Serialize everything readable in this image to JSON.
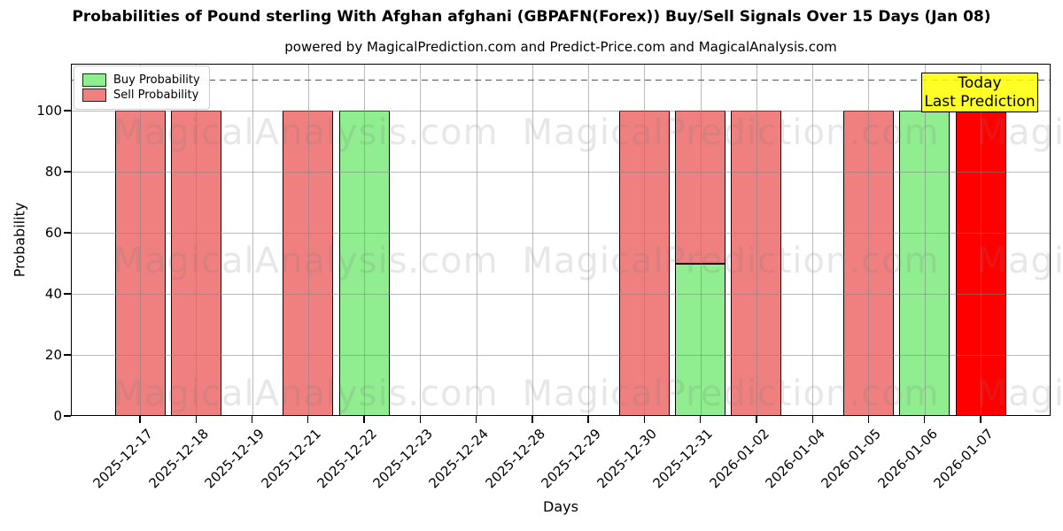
{
  "title": "Probabilities of Pound sterling With Afghan afghani (GBPAFN(Forex)) Buy/Sell Signals Over 15 Days (Jan 08)",
  "subtitle": "powered by MagicalPrediction.com and Predict-Price.com and MagicalAnalysis.com",
  "legend": {
    "buy_label": "Buy Probability",
    "sell_label": "Sell Probability"
  },
  "annotation": {
    "line1": "Today",
    "line2": "Last Prediction",
    "bg_color": "#FFFF00"
  },
  "colors": {
    "buy": "#90EE90",
    "sell": "#F08080",
    "today_bar": "#FF0000",
    "grid": "rgba(130,130,130,0.55)",
    "dashed_line": "#555555",
    "watermark": "rgba(120,120,120,0.18)"
  },
  "chart_data": {
    "type": "bar",
    "stacked": true,
    "title": "Probabilities of Pound sterling With Afghan afghani (GBPAFN(Forex)) Buy/Sell Signals Over 15 Days (Jan 08)",
    "xlabel": "Days",
    "ylabel": "Probability",
    "categories": [
      "2025-12-17",
      "2025-12-18",
      "2025-12-19",
      "2025-12-21",
      "2025-12-22",
      "2025-12-23",
      "2025-12-24",
      "2025-12-28",
      "2025-12-29",
      "2025-12-30",
      "2025-12-31",
      "2026-01-02",
      "2026-01-04",
      "2026-01-05",
      "2026-01-06",
      "2026-01-07"
    ],
    "series": [
      {
        "name": "Buy Probability",
        "color": "#90EE90",
        "values": [
          0,
          0,
          0,
          0,
          100,
          0,
          0,
          0,
          0,
          0,
          50,
          0,
          0,
          0,
          100,
          0
        ]
      },
      {
        "name": "Sell Probability",
        "color": "#F08080",
        "values": [
          100,
          100,
          0,
          100,
          0,
          0,
          0,
          0,
          0,
          100,
          50,
          100,
          0,
          100,
          0,
          100
        ]
      }
    ],
    "today_index": 15,
    "yticks": [
      0,
      20,
      40,
      60,
      80,
      100
    ],
    "ylim": [
      0,
      115.4
    ],
    "dashed_line_y": 110,
    "grid": true,
    "legend_position": "upper left",
    "watermarks": {
      "row_texts": [
        "MagicalAnalysis.com",
        "MagicalPrediction.com",
        "MagicalAnalysis.com"
      ],
      "row_centers_y": [
        78,
        223,
        373
      ],
      "col_centers_x": [
        265,
        745,
        1240
      ]
    }
  }
}
